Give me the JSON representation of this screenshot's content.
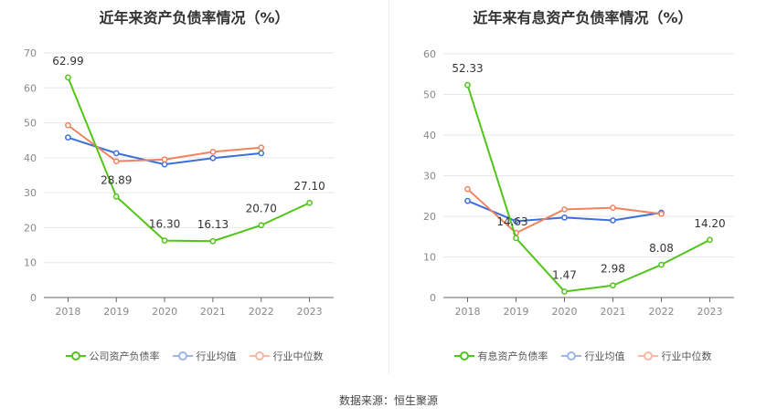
{
  "source_label": "数据来源：恒生聚源",
  "chart_data": [
    {
      "type": "line",
      "title": "近年来资产负债率情况（%）",
      "categories": [
        "2018",
        "2019",
        "2020",
        "2021",
        "2022",
        "2023"
      ],
      "ylim": [
        0,
        70
      ],
      "yticks": [
        0,
        10,
        20,
        30,
        40,
        50,
        60,
        70
      ],
      "grid": true,
      "legend_position": "bottom",
      "series": [
        {
          "name": "公司资产负债率",
          "color": "#52c41a",
          "values": [
            62.99,
            28.89,
            16.3,
            16.13,
            20.7,
            27.1
          ],
          "labels": [
            "62.99",
            "28.89",
            "16.30",
            "16.13",
            "20.70",
            "27.10"
          ]
        },
        {
          "name": "行业均值",
          "color": "#3d6fdb",
          "values": [
            45.8,
            41.3,
            38.1,
            39.9,
            41.3,
            null
          ]
        },
        {
          "name": "行业中位数",
          "color": "#f0845e",
          "values": [
            49.3,
            39.0,
            39.5,
            41.7,
            42.9,
            null
          ]
        }
      ]
    },
    {
      "type": "line",
      "title": "近年来有息资产负债率情况（%）",
      "categories": [
        "2018",
        "2019",
        "2020",
        "2021",
        "2022",
        "2023"
      ],
      "ylim": [
        0,
        60
      ],
      "yticks": [
        0,
        10,
        20,
        30,
        40,
        50,
        60
      ],
      "grid": true,
      "legend_position": "bottom",
      "series": [
        {
          "name": "有息资产负债率",
          "color": "#52c41a",
          "values": [
            52.33,
            14.63,
            1.47,
            2.98,
            8.08,
            14.2
          ],
          "labels": [
            "52.33",
            "14.63",
            "1.47",
            "2.98",
            "8.08",
            "14.20"
          ]
        },
        {
          "name": "行业均值",
          "color": "#3d6fdb",
          "values": [
            23.8,
            18.8,
            19.7,
            19.0,
            20.9,
            null
          ]
        },
        {
          "name": "行业中位数",
          "color": "#f0845e",
          "values": [
            26.7,
            15.9,
            21.7,
            22.1,
            20.6,
            null
          ]
        }
      ]
    }
  ]
}
